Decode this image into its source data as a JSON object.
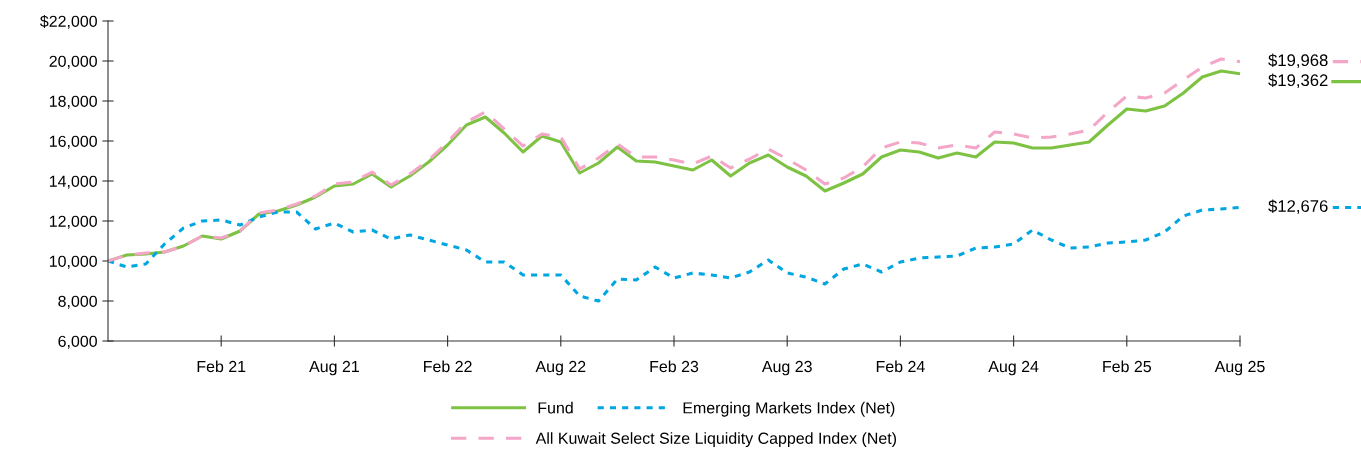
{
  "chart_data": {
    "type": "line",
    "categories": [
      null,
      null,
      null,
      null,
      null,
      null,
      "Feb 21",
      null,
      null,
      null,
      null,
      null,
      "Aug 21",
      null,
      null,
      null,
      null,
      null,
      "Feb 22",
      null,
      null,
      null,
      null,
      null,
      "Aug 22",
      null,
      null,
      null,
      null,
      null,
      "Feb 23",
      null,
      null,
      null,
      null,
      null,
      "Aug 23",
      null,
      null,
      null,
      null,
      null,
      "Feb 24",
      null,
      null,
      null,
      null,
      null,
      "Aug 24",
      null,
      null,
      null,
      null,
      null,
      "Feb 25",
      null,
      null,
      null,
      null,
      null,
      "Aug 25"
    ],
    "series": [
      {
        "name": "Fund",
        "color": "#7dc242",
        "line_style": "solid",
        "value_labels": [
          null,
          null,
          null,
          null,
          null,
          null,
          null,
          null,
          null,
          null,
          null,
          null,
          null,
          null,
          null,
          null,
          null,
          null,
          null,
          null,
          null,
          null,
          null,
          null,
          null,
          null,
          null,
          null,
          null,
          null,
          null,
          null,
          null,
          null,
          null,
          null,
          null,
          null,
          null,
          null,
          null,
          null,
          null,
          null,
          null,
          null,
          null,
          null,
          null,
          null,
          null,
          null,
          null,
          null,
          null,
          null,
          null,
          null,
          null,
          null,
          "$19,362"
        ],
        "values": [
          10000,
          10300,
          10350,
          10450,
          10750,
          11250,
          11100,
          11500,
          12350,
          12500,
          12800,
          13200,
          13750,
          13850,
          14350,
          13700,
          14250,
          14950,
          15800,
          16800,
          17200,
          16400,
          15450,
          16250,
          15950,
          14400,
          14900,
          15700,
          15000,
          14950,
          14750,
          14550,
          15050,
          14250,
          14900,
          15300,
          14700,
          14250,
          13500,
          13900,
          14350,
          15200,
          15550,
          15450,
          15150,
          15400,
          15200,
          15950,
          15900,
          15650,
          15650,
          15800,
          15950,
          16800,
          17600,
          17500,
          17750,
          18400,
          19200,
          19500,
          19362
        ]
      },
      {
        "name": "Emerging Markets Index (Net)",
        "color": "#00a6e2",
        "line_style": "dotted",
        "value_labels": [
          null,
          null,
          null,
          null,
          null,
          null,
          null,
          null,
          null,
          null,
          null,
          null,
          null,
          null,
          null,
          null,
          null,
          null,
          null,
          null,
          null,
          null,
          null,
          null,
          null,
          null,
          null,
          null,
          null,
          null,
          null,
          null,
          null,
          null,
          null,
          null,
          null,
          null,
          null,
          null,
          null,
          null,
          null,
          null,
          null,
          null,
          null,
          null,
          null,
          null,
          null,
          null,
          null,
          null,
          null,
          null,
          null,
          null,
          null,
          null,
          "$12,676"
        ],
        "values": [
          10000,
          9700,
          9850,
          10850,
          11650,
          12000,
          12050,
          11800,
          12200,
          12450,
          12450,
          11600,
          11900,
          11450,
          11550,
          11100,
          11300,
          11050,
          10800,
          10550,
          9950,
          9950,
          9300,
          9300,
          9300,
          8250,
          8000,
          9100,
          9050,
          9700,
          9150,
          9400,
          9300,
          9150,
          9450,
          10050,
          9400,
          9200,
          8850,
          9600,
          9850,
          9450,
          9950,
          10150,
          10200,
          10250,
          10650,
          10700,
          10850,
          11550,
          11050,
          10650,
          10700,
          10900,
          10950,
          11050,
          11450,
          12250,
          12550,
          12600,
          12676
        ]
      },
      {
        "name": "All Kuwait Select Size Liquidity Capped Index (Net)",
        "color": "#f4a6c8",
        "line_style": "dashed",
        "value_labels": [
          null,
          null,
          null,
          null,
          null,
          null,
          null,
          null,
          null,
          null,
          null,
          null,
          null,
          null,
          null,
          null,
          null,
          null,
          null,
          null,
          null,
          null,
          null,
          null,
          null,
          null,
          null,
          null,
          null,
          null,
          null,
          null,
          null,
          null,
          null,
          null,
          null,
          null,
          null,
          null,
          null,
          null,
          null,
          null,
          null,
          null,
          null,
          null,
          null,
          null,
          null,
          null,
          null,
          null,
          null,
          null,
          null,
          null,
          null,
          null,
          "$19,968"
        ],
        "values": [
          10000,
          10300,
          10400,
          10450,
          10750,
          11250,
          11150,
          11500,
          12400,
          12550,
          12850,
          13250,
          13850,
          13950,
          14450,
          13800,
          14350,
          15050,
          15950,
          16950,
          17450,
          16600,
          15750,
          16350,
          16200,
          14600,
          15150,
          15850,
          15200,
          15200,
          15050,
          14850,
          15250,
          14650,
          15100,
          15600,
          15100,
          14550,
          13850,
          14150,
          14700,
          15650,
          15950,
          15900,
          15650,
          15800,
          15650,
          16450,
          16350,
          16150,
          16200,
          16350,
          16550,
          17450,
          18250,
          18150,
          18400,
          19050,
          19700,
          20100,
          19968
        ]
      }
    ],
    "ylim": [
      6000,
      22000
    ],
    "yticks": [
      {
        "value": 6000,
        "label": "6,000"
      },
      {
        "value": 8000,
        "label": "8,000"
      },
      {
        "value": 10000,
        "label": "10,000"
      },
      {
        "value": 12000,
        "label": "12,000"
      },
      {
        "value": 14000,
        "label": "14,000"
      },
      {
        "value": 16000,
        "label": "16,000"
      },
      {
        "value": 18000,
        "label": "18,000"
      },
      {
        "value": 20000,
        "label": "20,000"
      },
      {
        "value": 22000,
        "label": "$22,000"
      }
    ],
    "grid": false,
    "legend": "bottom",
    "marker": "none"
  }
}
